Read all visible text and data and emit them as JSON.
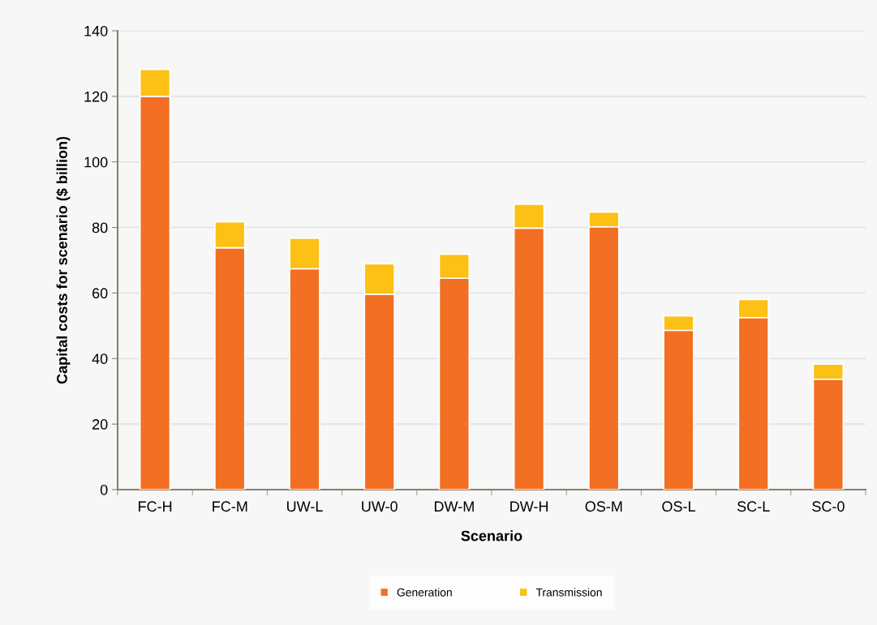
{
  "chart_data": {
    "type": "bar",
    "stacked": true,
    "xlabel": "Scenario",
    "ylabel": "Capital costs for scenario ($ billion)",
    "categories": [
      "FC-H",
      "FC-M",
      "UW-L",
      "UW-0",
      "DW-M",
      "DW-H",
      "OS-M",
      "OS-L",
      "SC-L",
      "SC-0"
    ],
    "series": [
      {
        "name": "Generation",
        "color": "#f26f23",
        "values": [
          120.0,
          73.8,
          67.4,
          59.6,
          64.5,
          79.8,
          80.2,
          48.6,
          52.5,
          33.7
        ]
      },
      {
        "name": "Transmission",
        "color": "#fdc014",
        "values": [
          8.2,
          7.9,
          9.3,
          9.3,
          7.3,
          7.3,
          4.5,
          4.4,
          5.5,
          4.6
        ]
      }
    ],
    "ylim": [
      0,
      140
    ],
    "yticks": [
      0,
      20,
      40,
      60,
      80,
      100,
      120,
      140
    ],
    "grid": "y",
    "legend": "bottom"
  }
}
